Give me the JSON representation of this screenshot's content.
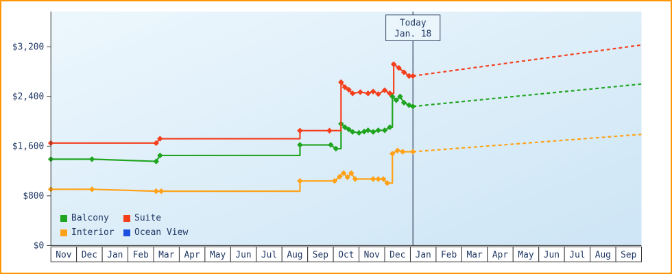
{
  "chart_data": {
    "type": "line",
    "title": "",
    "x_axis": {
      "months": [
        "Nov",
        "Dec",
        "Jan",
        "Feb",
        "Mar",
        "Apr",
        "May",
        "Jun",
        "Jul",
        "Aug",
        "Sep",
        "Oct",
        "Nov",
        "Dec",
        "Jan",
        "Feb",
        "Mar",
        "Apr",
        "May",
        "Jun",
        "Jul",
        "Aug",
        "Sep"
      ]
    },
    "y_axis": {
      "tick_values": [
        0,
        800,
        1600,
        2400,
        3200
      ],
      "tick_labels": [
        "$0",
        "$800",
        "$1,600",
        "$2,400",
        "$3,200"
      ],
      "unit": "USD"
    },
    "today": {
      "line1": "Today",
      "line2": "Jan. 18",
      "x_month": 14.1
    },
    "legend": [
      {
        "label": "Balcony",
        "color": "#1fa51f"
      },
      {
        "label": "Suite",
        "color": "#f43f1d"
      },
      {
        "label": "Interior",
        "color": "#ffa217"
      },
      {
        "label": "Ocean View",
        "color": "#1d4fe0"
      }
    ],
    "series": [
      {
        "name": "Balcony",
        "color": "#1fa51f",
        "points": [
          [
            0,
            1390,
            1
          ],
          [
            1.6,
            1390,
            1
          ],
          [
            4.1,
            1355,
            1
          ],
          [
            4.25,
            1450,
            1
          ],
          [
            9.7,
            1450,
            0
          ],
          [
            9.7,
            1620,
            1
          ],
          [
            10.9,
            1620,
            1
          ],
          [
            11.1,
            1560,
            1
          ],
          [
            11.3,
            1560,
            0
          ],
          [
            11.3,
            1960,
            1
          ],
          [
            11.45,
            1905,
            1
          ],
          [
            11.6,
            1870,
            1
          ],
          [
            11.75,
            1830,
            1
          ],
          [
            12,
            1815,
            1
          ],
          [
            12.2,
            1835,
            1
          ],
          [
            12.35,
            1855,
            1
          ],
          [
            12.55,
            1830,
            1
          ],
          [
            12.75,
            1855,
            1
          ],
          [
            13,
            1855,
            1
          ],
          [
            13.2,
            1905,
            1
          ],
          [
            13.3,
            1905,
            0
          ],
          [
            13.3,
            2400,
            1
          ],
          [
            13.45,
            2340,
            1
          ],
          [
            13.6,
            2400,
            1
          ],
          [
            13.75,
            2300,
            1
          ],
          [
            13.95,
            2260,
            1
          ],
          [
            14.1,
            2240,
            1
          ]
        ],
        "projection": [
          [
            14.1,
            2240
          ],
          [
            23,
            2600
          ]
        ]
      },
      {
        "name": "Suite",
        "color": "#f43f1d",
        "points": [
          [
            0,
            1650,
            1
          ],
          [
            4.1,
            1650,
            1
          ],
          [
            4.25,
            1720,
            1
          ],
          [
            9.7,
            1720,
            0
          ],
          [
            9.7,
            1850,
            1
          ],
          [
            10.85,
            1850,
            1
          ],
          [
            11.3,
            1850,
            0
          ],
          [
            11.3,
            2630,
            1
          ],
          [
            11.45,
            2550,
            1
          ],
          [
            11.6,
            2510,
            1
          ],
          [
            11.75,
            2450,
            1
          ],
          [
            12.05,
            2470,
            1
          ],
          [
            12.35,
            2450,
            1
          ],
          [
            12.55,
            2480,
            1
          ],
          [
            12.75,
            2440,
            1
          ],
          [
            13,
            2500,
            1
          ],
          [
            13.2,
            2450,
            1
          ],
          [
            13.35,
            2450,
            0
          ],
          [
            13.35,
            2920,
            1
          ],
          [
            13.55,
            2860,
            1
          ],
          [
            13.75,
            2790,
            1
          ],
          [
            13.95,
            2730,
            1
          ],
          [
            14.1,
            2730,
            1
          ]
        ],
        "projection": [
          [
            14.1,
            2730
          ],
          [
            23,
            3230
          ]
        ]
      },
      {
        "name": "Interior",
        "color": "#ffa217",
        "points": [
          [
            0,
            905,
            1
          ],
          [
            1.6,
            905,
            1
          ],
          [
            4.1,
            875,
            1
          ],
          [
            4.3,
            875,
            1
          ],
          [
            9.7,
            875,
            0
          ],
          [
            9.7,
            1040,
            1
          ],
          [
            11.05,
            1040,
            1
          ],
          [
            11.25,
            1110,
            1
          ],
          [
            11.4,
            1165,
            1
          ],
          [
            11.55,
            1100,
            1
          ],
          [
            11.7,
            1165,
            1
          ],
          [
            11.85,
            1070,
            1
          ],
          [
            12.55,
            1070,
            1
          ],
          [
            12.75,
            1070,
            1
          ],
          [
            12.95,
            1070,
            1
          ],
          [
            13.1,
            1005,
            1
          ],
          [
            13.3,
            1005,
            0
          ],
          [
            13.3,
            1480,
            1
          ],
          [
            13.5,
            1530,
            1
          ],
          [
            13.7,
            1510,
            1
          ],
          [
            14.1,
            1510,
            1
          ]
        ],
        "projection": [
          [
            14.1,
            1510
          ],
          [
            23,
            1790
          ]
        ]
      },
      {
        "name": "Ocean View",
        "color": "#1d4fe0",
        "points": [],
        "projection": []
      }
    ],
    "colors": {
      "frame": "#ff9800",
      "plot_bg_top": "#edf7fd",
      "plot_bg_bottom": "#cde5f5",
      "axis": "#333333",
      "text": "#203864",
      "today_line": "#2e3d5c",
      "today_box_fill": "#eaf5fc",
      "today_box_border": "#3b4a66",
      "month_box_fill": "#ffffff"
    }
  }
}
